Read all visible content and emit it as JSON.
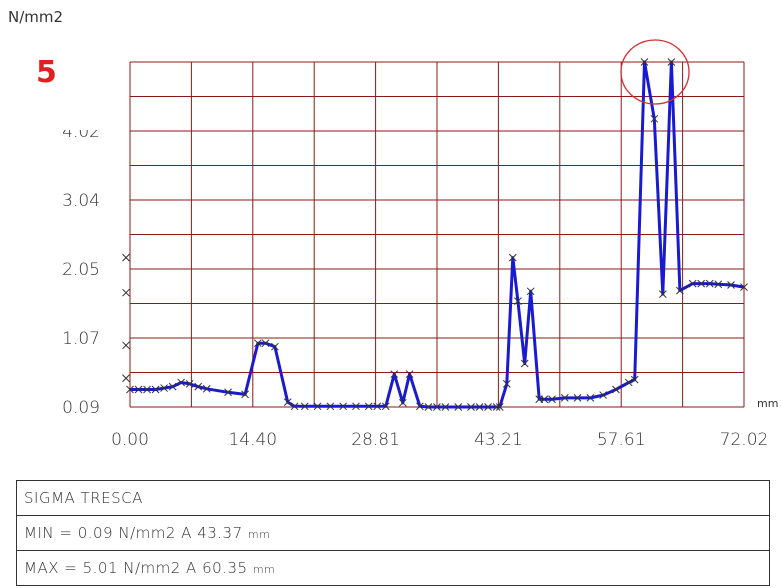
{
  "badge_label": "5",
  "colors": {
    "grid": "#8b1a1a",
    "line": "#1a1ad0",
    "marker": "#333333",
    "highlight": "#d43030",
    "badge": "#e02020"
  },
  "chart_data": {
    "type": "line",
    "y_unit": "N/mm2",
    "x_unit": "mm",
    "x_ticks": [
      "0.00",
      "14.40",
      "28.81",
      "43.21",
      "57.61",
      "72.02"
    ],
    "y_ticks": [
      "0.09",
      "1.07",
      "2.05",
      "3.04",
      "4.02"
    ],
    "xlim": [
      0,
      72.02
    ],
    "ylim": [
      0.09,
      5.01
    ],
    "grid": true,
    "x": [
      0,
      1,
      2,
      3,
      4,
      5,
      6,
      7,
      8,
      9,
      11.5,
      13.5,
      15.0,
      15.9,
      17.0,
      18.5,
      19.3,
      20.5,
      22,
      23.5,
      25,
      26.5,
      28,
      29,
      30,
      31,
      32,
      32.8,
      34,
      35,
      36,
      37,
      38.5,
      40,
      41,
      42,
      43,
      43.37,
      44.2,
      44.9,
      45.5,
      46.3,
      47,
      48,
      48.6,
      49.5,
      51,
      52.5,
      54,
      55.5,
      57,
      58.5,
      59.2,
      60.35,
      61.5,
      62.5,
      63.5,
      64.5,
      66,
      67,
      68,
      69,
      70.5,
      72.02
    ],
    "y": [
      0.34,
      0.34,
      0.34,
      0.34,
      0.36,
      0.38,
      0.44,
      0.42,
      0.38,
      0.35,
      0.3,
      0.27,
      1.0,
      1.0,
      0.95,
      0.16,
      0.1,
      0.1,
      0.1,
      0.1,
      0.1,
      0.1,
      0.1,
      0.1,
      0.1,
      0.56,
      0.15,
      0.56,
      0.1,
      0.09,
      0.09,
      0.09,
      0.09,
      0.09,
      0.09,
      0.09,
      0.09,
      0.09,
      0.42,
      2.22,
      1.6,
      0.71,
      1.74,
      0.2,
      0.2,
      0.2,
      0.22,
      0.22,
      0.22,
      0.26,
      0.34,
      0.44,
      0.48,
      5.01,
      4.2,
      1.7,
      5.01,
      1.75,
      1.85,
      1.85,
      1.85,
      1.84,
      1.83,
      1.8
    ],
    "extra_markers": [
      {
        "x": 0,
        "y": 2.22
      },
      {
        "x": 0,
        "y": 1.72
      },
      {
        "x": 0,
        "y": 0.97
      },
      {
        "x": 0,
        "y": 0.5
      }
    ],
    "annotation": "circle around maximum values near x=60"
  },
  "summary": {
    "title": "SIGMA TRESCA",
    "min_label": "MIN = 0.09 N/mm2  A 43.37",
    "min_unit": "mm",
    "max_label": "MAX = 5.01 N/mm2  A 60.35",
    "max_unit": "mm"
  }
}
